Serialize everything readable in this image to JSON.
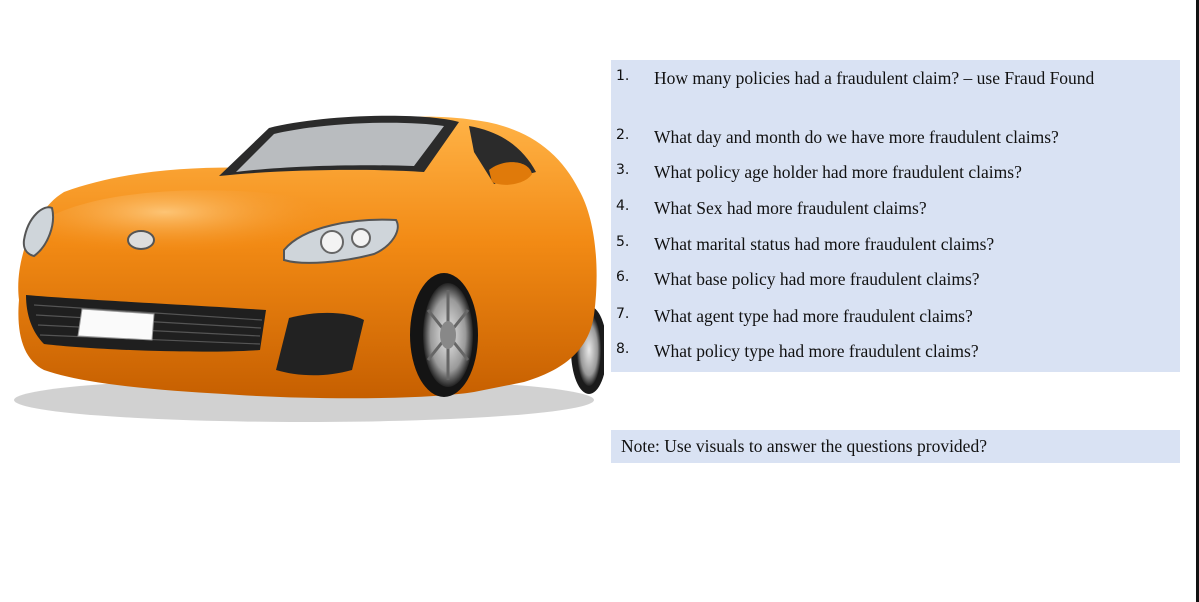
{
  "questions": [
    {
      "num": "1.",
      "text": "How many policies had a fraudulent claim? – use Fraud Found"
    },
    {
      "num": "2.",
      "text": "What day and month do we have more fraudulent claims?"
    },
    {
      "num": "3.",
      "text": "What policy age holder had more fraudulent claims?"
    },
    {
      "num": "4.",
      "text": "What Sex had more fraudulent claims?"
    },
    {
      "num": "5.",
      "text": "What marital status had more fraudulent claims?"
    },
    {
      "num": "6.",
      "text": "What base policy had more fraudulent claims?"
    },
    {
      "num": "7.",
      "text": "What agent type had more fraudulent claims?"
    },
    {
      "num": "8.",
      "text": "What policy type had more fraudulent claims?"
    }
  ],
  "note": "Note: Use visuals to answer the questions provided?",
  "colors": {
    "panel_bg": "#d9e2f3",
    "car_body": "#f28a14",
    "text": "#111111"
  },
  "image": {
    "icon": "orange-sports-car"
  }
}
